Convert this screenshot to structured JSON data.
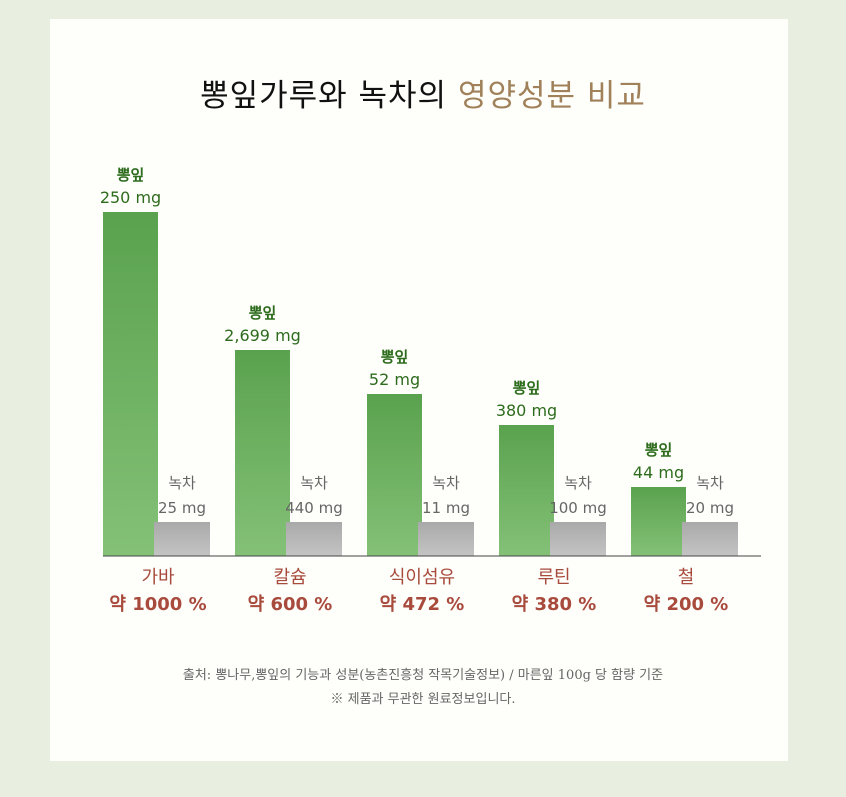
{
  "title": {
    "main": "뽕잎가루와 녹차의",
    "accent": "영양성분 비교"
  },
  "colors": {
    "mulberry": "#63a755",
    "mulberry_text": "#2e6c1d",
    "green_tea": "#b4b4b4",
    "green_tea_text": "#666666",
    "category": "#a84a3c",
    "accent": "#a0815a"
  },
  "chart_data": {
    "type": "bar",
    "categories": [
      "가바",
      "칼슘",
      "식이섬유",
      "루틴",
      "철"
    ],
    "series": [
      {
        "name": "뽕잎",
        "values": [
          250,
          2699,
          52,
          380,
          44
        ],
        "labels": [
          "250 mg",
          "2,699 mg",
          "52 mg",
          "380 mg",
          "44 mg"
        ]
      },
      {
        "name": "녹차",
        "values": [
          25,
          440,
          11,
          100,
          20
        ],
        "labels": [
          "25 mg",
          "440 mg",
          "11 mg",
          "100 mg",
          "20 mg"
        ]
      }
    ],
    "ratios": [
      "약 1000 %",
      "약 600 %",
      "약 472 %",
      "약 380 %",
      "약 200 %"
    ],
    "ratio_values": [
      1000,
      600,
      472,
      380,
      200
    ]
  },
  "source": {
    "line1": "출처: 뽕나무,뽕잎의 기능과 성분(농촌진흥청 작목기술정보) / 마른잎 100g 당 함량 기준",
    "line2": "※ 제품과 무관한 원료정보입니다."
  }
}
